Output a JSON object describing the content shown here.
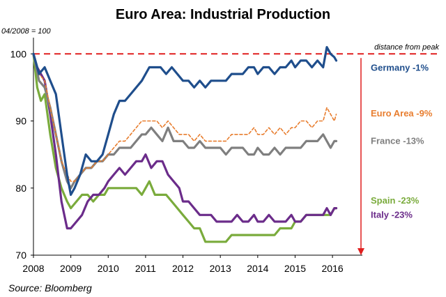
{
  "chart_data": {
    "type": "line",
    "title": "Euro Area: Industrial Production",
    "ylabel": "04/2008  = 100",
    "source": "Source:  Bloomberg",
    "ylim": [
      70,
      102
    ],
    "xlim": [
      2008,
      2016.8
    ],
    "yticks": [
      70,
      80,
      90,
      100
    ],
    "xticks": [
      "2008",
      "2009",
      "2010",
      "2011",
      "2012",
      "2013",
      "2014",
      "2015",
      "2016"
    ],
    "reference_line": {
      "value": 100,
      "label": "distance from peak",
      "color": "#e01f1f"
    },
    "series": [
      {
        "name": "Germany -1%",
        "color": "#1f4e8c",
        "dashed": false,
        "points": [
          [
            2008.0,
            100
          ],
          [
            2008.15,
            97
          ],
          [
            2008.3,
            98
          ],
          [
            2008.45,
            96
          ],
          [
            2008.6,
            94
          ],
          [
            2008.75,
            88
          ],
          [
            2008.9,
            82
          ],
          [
            2009.0,
            79
          ],
          [
            2009.1,
            80
          ],
          [
            2009.25,
            82
          ],
          [
            2009.4,
            85
          ],
          [
            2009.55,
            84
          ],
          [
            2009.7,
            84
          ],
          [
            2009.85,
            85
          ],
          [
            2010.0,
            88
          ],
          [
            2010.15,
            91
          ],
          [
            2010.3,
            93
          ],
          [
            2010.45,
            93
          ],
          [
            2010.6,
            94
          ],
          [
            2010.75,
            95
          ],
          [
            2010.9,
            96
          ],
          [
            2011.0,
            97
          ],
          [
            2011.1,
            98
          ],
          [
            2011.25,
            98
          ],
          [
            2011.4,
            98
          ],
          [
            2011.55,
            97
          ],
          [
            2011.7,
            98
          ],
          [
            2011.85,
            97
          ],
          [
            2012.0,
            96
          ],
          [
            2012.15,
            96
          ],
          [
            2012.3,
            95
          ],
          [
            2012.45,
            96
          ],
          [
            2012.6,
            95
          ],
          [
            2012.75,
            96
          ],
          [
            2012.9,
            96
          ],
          [
            2013.0,
            96
          ],
          [
            2013.15,
            96
          ],
          [
            2013.3,
            97
          ],
          [
            2013.45,
            97
          ],
          [
            2013.6,
            97
          ],
          [
            2013.75,
            98
          ],
          [
            2013.9,
            98
          ],
          [
            2014.0,
            97
          ],
          [
            2014.15,
            98
          ],
          [
            2014.3,
            98
          ],
          [
            2014.45,
            97
          ],
          [
            2014.6,
            98
          ],
          [
            2014.75,
            98
          ],
          [
            2014.9,
            99
          ],
          [
            2015.0,
            98
          ],
          [
            2015.15,
            99
          ],
          [
            2015.3,
            99
          ],
          [
            2015.45,
            98
          ],
          [
            2015.6,
            99
          ],
          [
            2015.75,
            98
          ],
          [
            2015.85,
            101
          ],
          [
            2015.95,
            100
          ],
          [
            2016.05,
            99.5
          ],
          [
            2016.1,
            99
          ]
        ]
      },
      {
        "name": "Euro Area -9%",
        "color": "#e87d2e",
        "dashed": true,
        "points": [
          [
            2008.0,
            100
          ],
          [
            2008.15,
            97
          ],
          [
            2008.3,
            96
          ],
          [
            2008.45,
            92
          ],
          [
            2008.6,
            88
          ],
          [
            2008.75,
            84
          ],
          [
            2008.9,
            82
          ],
          [
            2009.0,
            81
          ],
          [
            2009.1,
            81
          ],
          [
            2009.25,
            82
          ],
          [
            2009.4,
            83
          ],
          [
            2009.55,
            83
          ],
          [
            2009.7,
            84
          ],
          [
            2009.85,
            84
          ],
          [
            2010.0,
            85
          ],
          [
            2010.15,
            86
          ],
          [
            2010.3,
            87
          ],
          [
            2010.45,
            87
          ],
          [
            2010.6,
            88
          ],
          [
            2010.75,
            89
          ],
          [
            2010.9,
            90
          ],
          [
            2011.0,
            90
          ],
          [
            2011.15,
            90
          ],
          [
            2011.3,
            90
          ],
          [
            2011.45,
            89
          ],
          [
            2011.6,
            90
          ],
          [
            2011.75,
            89
          ],
          [
            2011.9,
            88
          ],
          [
            2012.0,
            88
          ],
          [
            2012.15,
            88
          ],
          [
            2012.3,
            87
          ],
          [
            2012.45,
            88
          ],
          [
            2012.6,
            87
          ],
          [
            2012.75,
            87
          ],
          [
            2012.9,
            87
          ],
          [
            2013.0,
            87
          ],
          [
            2013.15,
            87
          ],
          [
            2013.3,
            88
          ],
          [
            2013.45,
            88
          ],
          [
            2013.6,
            88
          ],
          [
            2013.75,
            88
          ],
          [
            2013.9,
            89
          ],
          [
            2014.0,
            88
          ],
          [
            2014.15,
            88
          ],
          [
            2014.3,
            89
          ],
          [
            2014.45,
            88
          ],
          [
            2014.6,
            89
          ],
          [
            2014.75,
            88
          ],
          [
            2014.9,
            89
          ],
          [
            2015.0,
            89
          ],
          [
            2015.15,
            90
          ],
          [
            2015.3,
            90
          ],
          [
            2015.45,
            89
          ],
          [
            2015.6,
            90
          ],
          [
            2015.75,
            90
          ],
          [
            2015.85,
            92
          ],
          [
            2015.95,
            91
          ],
          [
            2016.05,
            90
          ],
          [
            2016.1,
            91
          ]
        ]
      },
      {
        "name": "France -13%",
        "color": "#7f7f7f",
        "dashed": false,
        "points": [
          [
            2008.0,
            100
          ],
          [
            2008.15,
            96
          ],
          [
            2008.3,
            95
          ],
          [
            2008.45,
            92
          ],
          [
            2008.6,
            88
          ],
          [
            2008.75,
            84
          ],
          [
            2008.9,
            81
          ],
          [
            2009.0,
            80
          ],
          [
            2009.1,
            81
          ],
          [
            2009.25,
            82
          ],
          [
            2009.4,
            83
          ],
          [
            2009.55,
            83
          ],
          [
            2009.7,
            84
          ],
          [
            2009.85,
            84
          ],
          [
            2010.0,
            85
          ],
          [
            2010.15,
            85
          ],
          [
            2010.3,
            86
          ],
          [
            2010.45,
            86
          ],
          [
            2010.6,
            86
          ],
          [
            2010.75,
            87
          ],
          [
            2010.9,
            88
          ],
          [
            2011.0,
            88
          ],
          [
            2011.15,
            89
          ],
          [
            2011.3,
            88
          ],
          [
            2011.45,
            87
          ],
          [
            2011.6,
            89
          ],
          [
            2011.75,
            87
          ],
          [
            2011.9,
            87
          ],
          [
            2012.0,
            87
          ],
          [
            2012.15,
            86
          ],
          [
            2012.3,
            86
          ],
          [
            2012.45,
            87
          ],
          [
            2012.6,
            86
          ],
          [
            2012.75,
            86
          ],
          [
            2012.9,
            86
          ],
          [
            2013.0,
            86
          ],
          [
            2013.15,
            85
          ],
          [
            2013.3,
            86
          ],
          [
            2013.45,
            86
          ],
          [
            2013.6,
            86
          ],
          [
            2013.75,
            85
          ],
          [
            2013.9,
            85
          ],
          [
            2014.0,
            86
          ],
          [
            2014.15,
            85
          ],
          [
            2014.3,
            85
          ],
          [
            2014.45,
            86
          ],
          [
            2014.6,
            85
          ],
          [
            2014.75,
            86
          ],
          [
            2014.9,
            86
          ],
          [
            2015.0,
            86
          ],
          [
            2015.15,
            86
          ],
          [
            2015.3,
            87
          ],
          [
            2015.45,
            87
          ],
          [
            2015.6,
            87
          ],
          [
            2015.75,
            88
          ],
          [
            2015.85,
            87
          ],
          [
            2015.95,
            86
          ],
          [
            2016.05,
            87
          ],
          [
            2016.1,
            87
          ]
        ]
      },
      {
        "name": "Spain -23%",
        "color": "#7aab3c",
        "dashed": false,
        "points": [
          [
            2008.0,
            100
          ],
          [
            2008.1,
            95
          ],
          [
            2008.2,
            93
          ],
          [
            2008.3,
            94
          ],
          [
            2008.45,
            88
          ],
          [
            2008.6,
            83
          ],
          [
            2008.75,
            80
          ],
          [
            2008.9,
            78
          ],
          [
            2009.0,
            77
          ],
          [
            2009.15,
            78
          ],
          [
            2009.3,
            79
          ],
          [
            2009.45,
            79
          ],
          [
            2009.6,
            78
          ],
          [
            2009.75,
            79
          ],
          [
            2009.9,
            79
          ],
          [
            2010.0,
            80
          ],
          [
            2010.15,
            80
          ],
          [
            2010.3,
            80
          ],
          [
            2010.45,
            80
          ],
          [
            2010.6,
            80
          ],
          [
            2010.75,
            80
          ],
          [
            2010.9,
            79
          ],
          [
            2011.0,
            80
          ],
          [
            2011.1,
            81
          ],
          [
            2011.25,
            79
          ],
          [
            2011.4,
            79
          ],
          [
            2011.55,
            79
          ],
          [
            2011.7,
            78
          ],
          [
            2011.85,
            77
          ],
          [
            2012.0,
            76
          ],
          [
            2012.15,
            75
          ],
          [
            2012.3,
            74
          ],
          [
            2012.45,
            74
          ],
          [
            2012.6,
            72
          ],
          [
            2012.75,
            72
          ],
          [
            2012.9,
            72
          ],
          [
            2013.0,
            72
          ],
          [
            2013.15,
            72
          ],
          [
            2013.3,
            73
          ],
          [
            2013.45,
            73
          ],
          [
            2013.6,
            73
          ],
          [
            2013.75,
            73
          ],
          [
            2013.9,
            73
          ],
          [
            2014.0,
            73
          ],
          [
            2014.15,
            73
          ],
          [
            2014.3,
            73
          ],
          [
            2014.45,
            73
          ],
          [
            2014.6,
            74
          ],
          [
            2014.75,
            74
          ],
          [
            2014.9,
            74
          ],
          [
            2015.0,
            75
          ],
          [
            2015.15,
            75
          ],
          [
            2015.3,
            76
          ],
          [
            2015.45,
            76
          ],
          [
            2015.6,
            76
          ],
          [
            2015.75,
            76
          ],
          [
            2015.85,
            76
          ],
          [
            2015.95,
            76
          ],
          [
            2016.05,
            77
          ],
          [
            2016.1,
            77
          ]
        ]
      },
      {
        "name": "Italy -23%",
        "color": "#6b2c8a",
        "dashed": false,
        "points": [
          [
            2008.0,
            100
          ],
          [
            2008.1,
            98
          ],
          [
            2008.2,
            97
          ],
          [
            2008.3,
            96
          ],
          [
            2008.45,
            91
          ],
          [
            2008.6,
            85
          ],
          [
            2008.75,
            78
          ],
          [
            2008.9,
            74
          ],
          [
            2009.0,
            74
          ],
          [
            2009.15,
            75
          ],
          [
            2009.3,
            76
          ],
          [
            2009.45,
            78
          ],
          [
            2009.6,
            79
          ],
          [
            2009.75,
            79
          ],
          [
            2009.9,
            80
          ],
          [
            2010.0,
            81
          ],
          [
            2010.15,
            82
          ],
          [
            2010.3,
            83
          ],
          [
            2010.45,
            82
          ],
          [
            2010.6,
            83
          ],
          [
            2010.75,
            84
          ],
          [
            2010.9,
            84
          ],
          [
            2011.0,
            85
          ],
          [
            2011.15,
            83
          ],
          [
            2011.3,
            84
          ],
          [
            2011.45,
            84
          ],
          [
            2011.6,
            82
          ],
          [
            2011.75,
            81
          ],
          [
            2011.9,
            80
          ],
          [
            2012.0,
            78
          ],
          [
            2012.15,
            78
          ],
          [
            2012.3,
            77
          ],
          [
            2012.45,
            76
          ],
          [
            2012.6,
            76
          ],
          [
            2012.75,
            76
          ],
          [
            2012.9,
            75
          ],
          [
            2013.0,
            75
          ],
          [
            2013.15,
            75
          ],
          [
            2013.3,
            75
          ],
          [
            2013.45,
            76
          ],
          [
            2013.6,
            75
          ],
          [
            2013.75,
            75
          ],
          [
            2013.9,
            76
          ],
          [
            2014.0,
            75
          ],
          [
            2014.15,
            75
          ],
          [
            2014.3,
            76
          ],
          [
            2014.45,
            75
          ],
          [
            2014.6,
            75
          ],
          [
            2014.75,
            75
          ],
          [
            2014.9,
            76
          ],
          [
            2015.0,
            75
          ],
          [
            2015.15,
            75
          ],
          [
            2015.3,
            76
          ],
          [
            2015.45,
            76
          ],
          [
            2015.6,
            76
          ],
          [
            2015.75,
            76
          ],
          [
            2015.85,
            77
          ],
          [
            2015.95,
            76
          ],
          [
            2016.05,
            77
          ],
          [
            2016.1,
            77
          ]
        ]
      }
    ],
    "labels": [
      {
        "text": "Germany -1%",
        "color": "#1f4e8c",
        "y": 98
      },
      {
        "text": "Euro Area -9%",
        "color": "#e87d2e",
        "y": 91.2
      },
      {
        "text": "France -13%",
        "color": "#7f7f7f",
        "y": 87.1
      },
      {
        "text": "Spain -23%",
        "color": "#7aab3c",
        "y": 78.2
      },
      {
        "text": "Italy -23%",
        "color": "#6b2c8a",
        "y": 76.1
      }
    ]
  }
}
